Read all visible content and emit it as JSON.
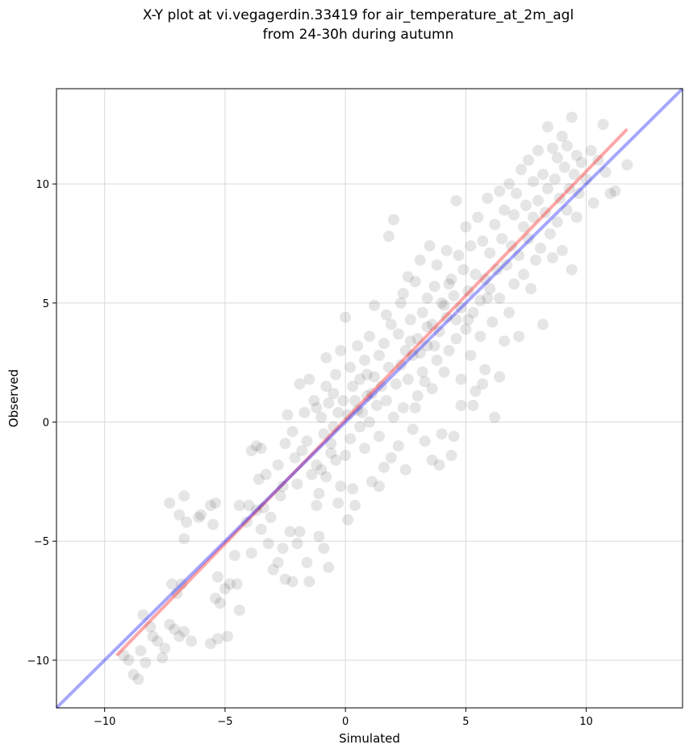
{
  "chart_data": {
    "type": "scatter",
    "title": "X-Y plot at vi.vegagerdin.33419 for air_temperature_at_2m_agl",
    "subtitle": "from 24-30h during autumn",
    "xlabel": "Simulated",
    "ylabel": "Observed",
    "xlim": [
      -12,
      14
    ],
    "ylim": [
      -12,
      14
    ],
    "xticks": [
      -10,
      -5,
      0,
      5,
      10
    ],
    "yticks": [
      -10,
      -5,
      0,
      5,
      10
    ],
    "tick_labels": [
      "−10",
      "−5",
      "0",
      "5",
      "10"
    ],
    "grid": true,
    "point_color": "#000000",
    "point_opacity": 0.1,
    "series": [
      {
        "type": "scatter",
        "values": [
          [
            -9.2,
            -9.8
          ],
          [
            -9.0,
            -10.0
          ],
          [
            -8.8,
            -10.6
          ],
          [
            -8.6,
            -10.8
          ],
          [
            -8.5,
            -9.6
          ],
          [
            -8.3,
            -10.1
          ],
          [
            -8.4,
            -8.1
          ],
          [
            -8.0,
            -9.0
          ],
          [
            -8.1,
            -8.6
          ],
          [
            -7.8,
            -9.2
          ],
          [
            -7.6,
            -9.9
          ],
          [
            -7.5,
            -9.5
          ],
          [
            -7.3,
            -8.5
          ],
          [
            -7.1,
            -8.7
          ],
          [
            -6.9,
            -9.0
          ],
          [
            -6.7,
            -8.8
          ],
          [
            -6.4,
            -9.2
          ],
          [
            -7.2,
            -6.8
          ],
          [
            -7.0,
            -7.2
          ],
          [
            -6.8,
            -6.8
          ],
          [
            -7.3,
            -3.4
          ],
          [
            -6.9,
            -3.9
          ],
          [
            -6.7,
            -3.1
          ],
          [
            -6.7,
            -4.9
          ],
          [
            -6.6,
            -4.2
          ],
          [
            -6.1,
            -4.0
          ],
          [
            -6.0,
            -3.9
          ],
          [
            -5.6,
            -3.5
          ],
          [
            -5.4,
            -3.4
          ],
          [
            -5.5,
            -4.3
          ],
          [
            -5.6,
            -9.3
          ],
          [
            -5.3,
            -9.1
          ],
          [
            -4.9,
            -9.0
          ],
          [
            -5.4,
            -7.4
          ],
          [
            -5.2,
            -7.6
          ],
          [
            -5.0,
            -7.0
          ],
          [
            -4.8,
            -6.8
          ],
          [
            -4.5,
            -6.8
          ],
          [
            -4.4,
            -7.9
          ],
          [
            -4.6,
            -5.6
          ],
          [
            -5.3,
            -6.5
          ],
          [
            -4.1,
            -4.2
          ],
          [
            -3.9,
            -5.5
          ],
          [
            -4.0,
            -3.5
          ],
          [
            -3.7,
            -3.7
          ],
          [
            -3.9,
            -1.2
          ],
          [
            -3.7,
            -1.0
          ],
          [
            -3.5,
            -1.1
          ],
          [
            -3.6,
            -2.4
          ],
          [
            -3.3,
            -2.2
          ],
          [
            -3.4,
            -3.6
          ],
          [
            -3.1,
            -4.0
          ],
          [
            -3.2,
            -5.1
          ],
          [
            -3.0,
            -6.2
          ],
          [
            -2.8,
            -5.9
          ],
          [
            -2.6,
            -5.3
          ],
          [
            -2.5,
            -6.6
          ],
          [
            -2.3,
            -4.6
          ],
          [
            -2.2,
            -6.7
          ],
          [
            -2.0,
            -5.1
          ],
          [
            -2.8,
            -1.8
          ],
          [
            -2.6,
            -2.7
          ],
          [
            -2.5,
            -0.9
          ],
          [
            -2.4,
            0.3
          ],
          [
            -2.2,
            -0.4
          ],
          [
            -2.1,
            -1.5
          ],
          [
            -2.0,
            -2.6
          ],
          [
            -1.8,
            -1.2
          ],
          [
            -1.7,
            0.4
          ],
          [
            -1.6,
            -0.8
          ],
          [
            -1.5,
            1.8
          ],
          [
            -1.4,
            -2.2
          ],
          [
            -1.3,
            0.9
          ],
          [
            -1.2,
            -1.8
          ],
          [
            -1.1,
            -3.0
          ],
          [
            -1.0,
            0.2
          ],
          [
            -0.9,
            -0.5
          ],
          [
            -0.8,
            1.5
          ],
          [
            -0.8,
            -2.3
          ],
          [
            -0.7,
            0.8
          ],
          [
            -0.6,
            -0.9
          ],
          [
            -0.5,
            1.2
          ],
          [
            -0.4,
            -1.6
          ],
          [
            -0.4,
            2.0
          ],
          [
            -0.3,
            0.4
          ],
          [
            -0.2,
            -2.7
          ],
          [
            -0.2,
            3.0
          ],
          [
            -0.1,
            0.9
          ],
          [
            0.0,
            -1.4
          ],
          [
            0.0,
            4.4
          ],
          [
            0.1,
            0.3
          ],
          [
            0.2,
            2.3
          ],
          [
            0.2,
            -0.7
          ],
          [
            0.3,
            1.5
          ],
          [
            0.4,
            -3.5
          ],
          [
            0.4,
            0.9
          ],
          [
            0.5,
            3.2
          ],
          [
            0.6,
            -0.2
          ],
          [
            0.6,
            1.8
          ],
          [
            0.7,
            0.4
          ],
          [
            0.8,
            2.6
          ],
          [
            0.8,
            -1.1
          ],
          [
            0.9,
            1.1
          ],
          [
            1.0,
            3.6
          ],
          [
            1.0,
            0.0
          ],
          [
            1.1,
            -2.5
          ],
          [
            1.2,
            1.9
          ],
          [
            1.2,
            4.9
          ],
          [
            1.3,
            0.7
          ],
          [
            1.4,
            2.8
          ],
          [
            1.4,
            -0.6
          ],
          [
            1.5,
            1.5
          ],
          [
            1.6,
            3.3
          ],
          [
            1.6,
            -1.9
          ],
          [
            1.7,
            0.9
          ],
          [
            1.8,
            2.3
          ],
          [
            1.8,
            7.8
          ],
          [
            1.9,
            4.1
          ],
          [
            2.0,
            0.2
          ],
          [
            2.0,
            8.5
          ],
          [
            2.1,
            1.6
          ],
          [
            2.2,
            3.7
          ],
          [
            2.2,
            -1.0
          ],
          [
            2.3,
            2.4
          ],
          [
            2.4,
            5.4
          ],
          [
            2.4,
            0.6
          ],
          [
            2.5,
            3.0
          ],
          [
            2.6,
            6.1
          ],
          [
            2.6,
            1.8
          ],
          [
            2.7,
            4.3
          ],
          [
            2.8,
            -0.3
          ],
          [
            2.8,
            2.8
          ],
          [
            2.9,
            5.9
          ],
          [
            3.0,
            3.5
          ],
          [
            3.0,
            1.1
          ],
          [
            3.1,
            6.8
          ],
          [
            3.2,
            4.6
          ],
          [
            3.2,
            2.1
          ],
          [
            3.3,
            -0.8
          ],
          [
            3.4,
            5.2
          ],
          [
            3.4,
            3.2
          ],
          [
            3.5,
            7.4
          ],
          [
            3.6,
            4.1
          ],
          [
            3.6,
            1.4
          ],
          [
            3.7,
            5.7
          ],
          [
            3.8,
            2.6
          ],
          [
            3.8,
            6.6
          ],
          [
            3.9,
            3.8
          ],
          [
            4.0,
            -0.5
          ],
          [
            4.0,
            5.0
          ],
          [
            4.1,
            2.1
          ],
          [
            4.2,
            7.2
          ],
          [
            4.2,
            4.4
          ],
          [
            4.3,
            3.0
          ],
          [
            4.4,
            6.0
          ],
          [
            4.4,
            -1.4
          ],
          [
            4.5,
            5.3
          ],
          [
            4.6,
            3.5
          ],
          [
            4.6,
            9.3
          ],
          [
            4.7,
            7.0
          ],
          [
            4.8,
            4.8
          ],
          [
            4.8,
            1.8
          ],
          [
            4.9,
            6.4
          ],
          [
            5.0,
            3.9
          ],
          [
            5.0,
            8.2
          ],
          [
            5.1,
            5.5
          ],
          [
            5.2,
            2.8
          ],
          [
            5.2,
            7.4
          ],
          [
            5.3,
            4.6
          ],
          [
            5.4,
            6.2
          ],
          [
            5.4,
            1.3
          ],
          [
            5.5,
            8.6
          ],
          [
            5.6,
            5.1
          ],
          [
            5.6,
            3.6
          ],
          [
            5.7,
            7.6
          ],
          [
            5.8,
            6.0
          ],
          [
            5.8,
            2.2
          ],
          [
            5.9,
            9.4
          ],
          [
            6.0,
            5.6
          ],
          [
            6.0,
            7.1
          ],
          [
            6.1,
            4.2
          ],
          [
            6.2,
            8.3
          ],
          [
            6.2,
            0.2
          ],
          [
            6.3,
            6.4
          ],
          [
            6.4,
            9.7
          ],
          [
            6.4,
            5.2
          ],
          [
            6.5,
            7.7
          ],
          [
            6.6,
            3.4
          ],
          [
            6.6,
            8.9
          ],
          [
            6.7,
            6.6
          ],
          [
            6.8,
            10.0
          ],
          [
            6.8,
            4.6
          ],
          [
            6.9,
            7.4
          ],
          [
            7.0,
            8.7
          ],
          [
            7.0,
            5.8
          ],
          [
            7.1,
            9.6
          ],
          [
            7.2,
            3.6
          ],
          [
            7.2,
            7.0
          ],
          [
            7.3,
            10.6
          ],
          [
            7.4,
            8.2
          ],
          [
            7.4,
            6.2
          ],
          [
            7.5,
            9.1
          ],
          [
            7.6,
            11.0
          ],
          [
            7.6,
            7.7
          ],
          [
            7.7,
            5.6
          ],
          [
            7.8,
            10.1
          ],
          [
            7.8,
            8.6
          ],
          [
            7.9,
            6.8
          ],
          [
            8.0,
            11.4
          ],
          [
            8.0,
            9.3
          ],
          [
            8.1,
            7.3
          ],
          [
            8.2,
            10.4
          ],
          [
            8.2,
            4.1
          ],
          [
            8.3,
            8.8
          ],
          [
            8.4,
            12.4
          ],
          [
            8.4,
            9.8
          ],
          [
            8.5,
            7.9
          ],
          [
            8.6,
            11.5
          ],
          [
            8.6,
            6.9
          ],
          [
            8.7,
            10.2
          ],
          [
            8.8,
            8.4
          ],
          [
            8.8,
            11.1
          ],
          [
            8.9,
            9.4
          ],
          [
            9.0,
            12.0
          ],
          [
            9.0,
            7.2
          ],
          [
            9.1,
            10.7
          ],
          [
            9.2,
            8.9
          ],
          [
            9.2,
            11.6
          ],
          [
            9.3,
            9.8
          ],
          [
            9.4,
            12.8
          ],
          [
            9.4,
            6.4
          ],
          [
            9.5,
            10.4
          ],
          [
            9.6,
            8.6
          ],
          [
            9.6,
            11.2
          ],
          [
            9.7,
            9.6
          ],
          [
            9.8,
            10.9
          ],
          [
            10.0,
            10.2
          ],
          [
            10.2,
            11.4
          ],
          [
            10.3,
            9.2
          ],
          [
            10.5,
            11.0
          ],
          [
            10.7,
            12.5
          ],
          [
            10.8,
            10.5
          ],
          [
            11.0,
            9.6
          ],
          [
            11.2,
            9.7
          ],
          [
            11.7,
            10.8
          ],
          [
            0.3,
            -2.8
          ],
          [
            0.1,
            -4.1
          ],
          [
            -0.3,
            -3.4
          ],
          [
            -0.6,
            -1.3
          ],
          [
            -1.0,
            -2.0
          ],
          [
            1.4,
            -2.7
          ],
          [
            1.9,
            -1.5
          ],
          [
            2.5,
            -2.0
          ],
          [
            3.6,
            -1.6
          ],
          [
            3.9,
            -1.8
          ],
          [
            4.5,
            -0.6
          ],
          [
            4.8,
            0.7
          ],
          [
            5.3,
            0.7
          ],
          [
            5.7,
            1.6
          ],
          [
            6.4,
            1.9
          ],
          [
            -1.9,
            -4.6
          ],
          [
            -1.6,
            -5.9
          ],
          [
            -1.1,
            -4.8
          ],
          [
            -1.2,
            -3.5
          ],
          [
            -0.9,
            -5.3
          ],
          [
            -0.7,
            -6.1
          ],
          [
            -1.5,
            -6.7
          ],
          [
            -2.7,
            -3.1
          ],
          [
            -3.5,
            -4.5
          ],
          [
            -4.4,
            -3.5
          ],
          [
            2.9,
            0.6
          ],
          [
            3.3,
            1.7
          ],
          [
            3.7,
            3.2
          ],
          [
            4.1,
            4.9
          ],
          [
            4.6,
            4.3
          ],
          [
            5.1,
            4.3
          ],
          [
            2.7,
            3.4
          ],
          [
            3.1,
            2.9
          ],
          [
            1.1,
            1.2
          ],
          [
            0.5,
            0.5
          ],
          [
            -0.5,
            -0.2
          ],
          [
            -1.2,
            0.6
          ],
          [
            -1.9,
            1.6
          ],
          [
            -0.8,
            2.7
          ],
          [
            0.9,
            2.0
          ],
          [
            1.7,
            4.5
          ],
          [
            2.3,
            5.0
          ],
          [
            3.4,
            4.0
          ],
          [
            4.3,
            5.8
          ],
          [
            5.9,
            5.2
          ]
        ]
      },
      {
        "name": "fit",
        "type": "line",
        "color": "#ff0000",
        "opacity": 0.35,
        "values": [
          [
            -9.5,
            -9.8
          ],
          [
            11.7,
            12.3
          ]
        ]
      },
      {
        "name": "identity",
        "type": "line",
        "color": "#0000ff",
        "opacity": 0.35,
        "values": [
          [
            -12,
            -12
          ],
          [
            14,
            14
          ]
        ]
      }
    ]
  }
}
